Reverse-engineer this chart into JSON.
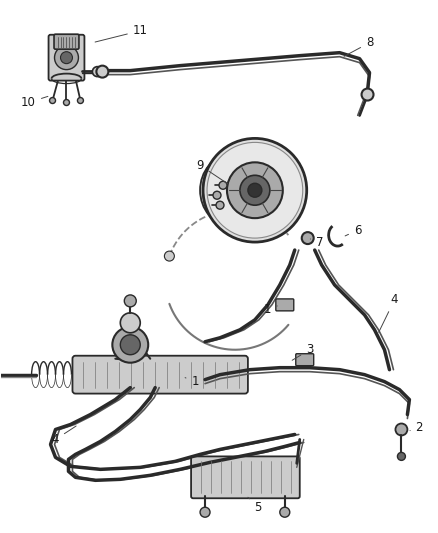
{
  "bg_color": "#f5f5f5",
  "line_color": "#2a2a2a",
  "label_color": "#1a1a1a",
  "label_fontsize": 8.5,
  "fig_width": 4.39,
  "fig_height": 5.33,
  "dpi": 100,
  "component_gray": "#888888",
  "light_gray": "#cccccc",
  "mid_gray": "#aaaaaa",
  "dark_gray": "#666666"
}
